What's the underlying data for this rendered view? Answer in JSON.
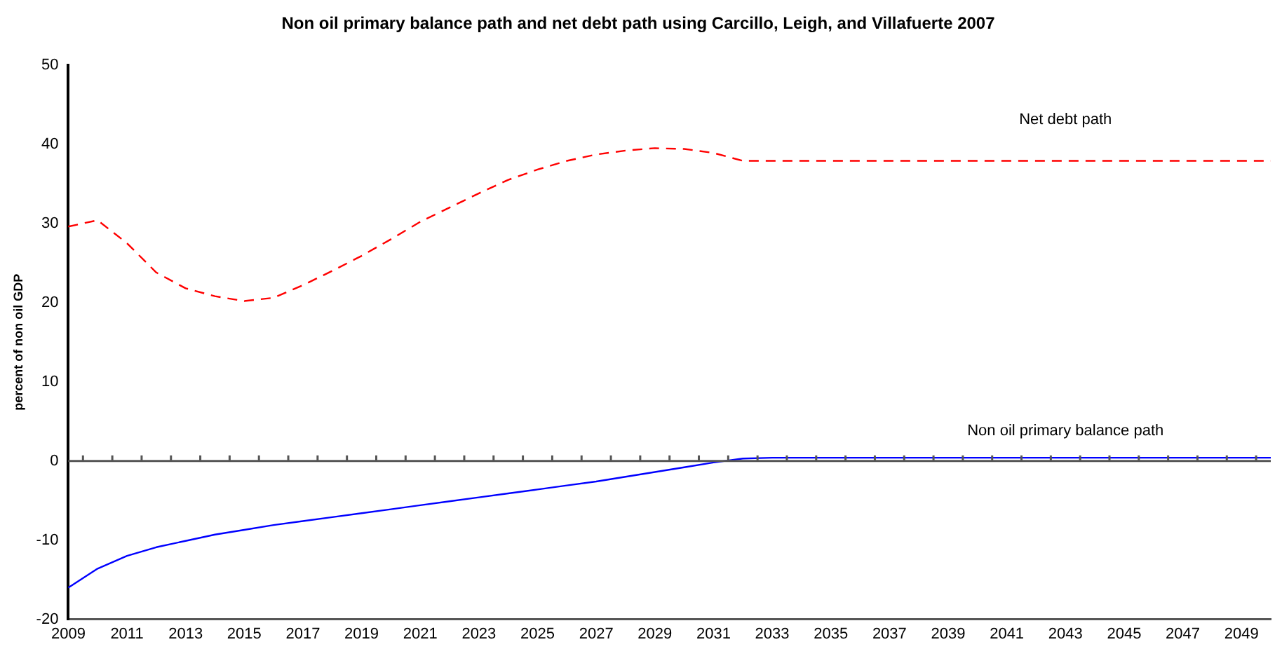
{
  "chart_data": {
    "type": "line",
    "title": "Non oil primary balance path and net debt path using Carcillo, Leigh, and Villafuerte 2007",
    "ylabel": "percent of non oil GDP",
    "categories": [
      "2009",
      null,
      "2011",
      null,
      "2013",
      null,
      "2015",
      null,
      "2017",
      null,
      "2019",
      null,
      "2021",
      null,
      "2023",
      null,
      "2025",
      null,
      "2027",
      null,
      "2029",
      null,
      "2031",
      null,
      "2033",
      null,
      "2035",
      null,
      "2037",
      null,
      "2039",
      null,
      "2041",
      null,
      "2043",
      null,
      "2045",
      null,
      "2047",
      null,
      "2049",
      null
    ],
    "series": [
      {
        "name": "Net debt path",
        "color": "#ff0000",
        "line_style": "dashed",
        "values": [
          29.6,
          30.4,
          27.5,
          23.8,
          21.8,
          20.8,
          20.2,
          20.6,
          22.2,
          24.0,
          25.9,
          28.0,
          30.2,
          32.0,
          33.8,
          35.5,
          36.8,
          37.9,
          38.7,
          39.2,
          39.5,
          39.4,
          38.9,
          37.9,
          37.9,
          37.9,
          37.9,
          37.9,
          37.9,
          37.9,
          37.9,
          37.9,
          37.9,
          37.9,
          37.9,
          37.9,
          37.9,
          37.9,
          37.9,
          37.9,
          37.9,
          37.9
        ]
      },
      {
        "name": "Non oil primary balance path",
        "color": "#0000ff",
        "line_style": "solid",
        "values": [
          -16.0,
          -13.6,
          -12.0,
          -10.9,
          -10.1,
          -9.3,
          -8.7,
          -8.1,
          -7.6,
          -7.1,
          -6.6,
          -6.1,
          -5.6,
          -5.1,
          -4.6,
          -4.1,
          -3.6,
          -3.1,
          -2.6,
          -2.0,
          -1.4,
          -0.8,
          -0.2,
          0.3,
          0.4,
          0.4,
          0.4,
          0.4,
          0.4,
          0.4,
          0.4,
          0.4,
          0.4,
          0.4,
          0.4,
          0.4,
          0.4,
          0.4,
          0.4,
          0.4,
          0.4,
          0.4
        ]
      }
    ],
    "ref_lines": [
      {
        "axis": "y",
        "value": 0,
        "color": "#555555"
      }
    ],
    "ylim": [
      -20,
      50
    ],
    "yticks": [
      -20,
      -10,
      0,
      10,
      20,
      30,
      40,
      50
    ],
    "grid": false,
    "legend": false,
    "marker": "none"
  }
}
